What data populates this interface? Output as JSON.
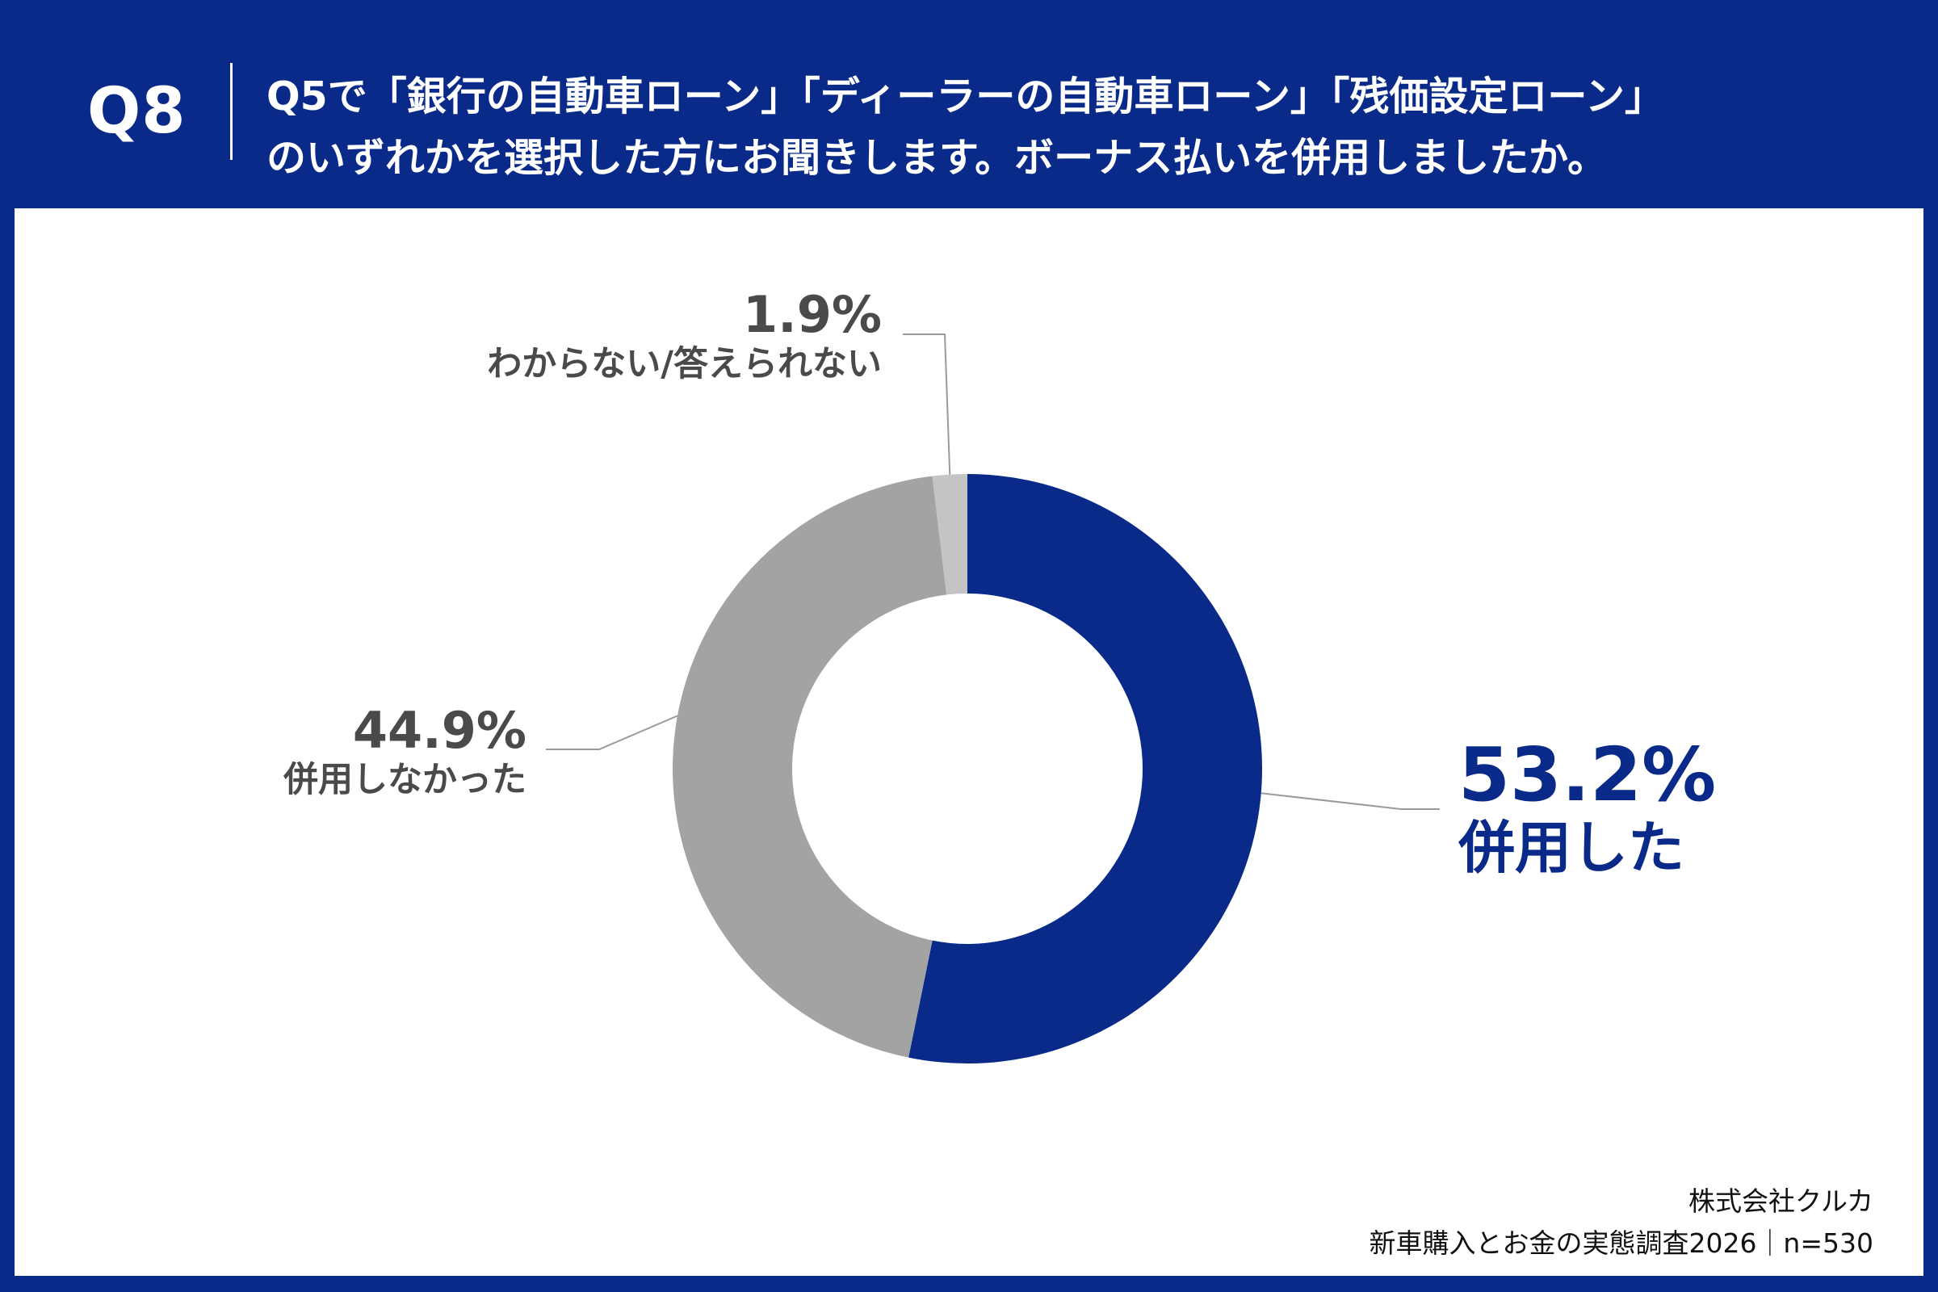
{
  "header": {
    "question_number": "Q8",
    "question_line1": "Q5で「銀行の自動車ローン」「ディーラーの自動車ローン」「残価設定ローン」",
    "question_line2": "のいずれかを選択した方にお聞きします。ボーナス払いを併用しましたか。"
  },
  "colors": {
    "primary": "#0a2a8a",
    "secondary": "#a3a3a3",
    "tertiary": "#c4c4c4",
    "label_gray": "#4a4a4a",
    "leader_line": "#9a9a9a"
  },
  "chart_data": {
    "type": "pie",
    "variant": "donut",
    "start_angle_deg": 0,
    "direction": "clockwise",
    "series": [
      {
        "name": "併用した",
        "value": 53.2,
        "label": "53.2%",
        "color": "#0a2a8a"
      },
      {
        "name": "併用しなかった",
        "value": 44.9,
        "label": "44.9%",
        "color": "#a3a3a3"
      },
      {
        "name": "わからない/答えられない",
        "value": 1.9,
        "label": "1.9%",
        "color": "#c4c4c4"
      }
    ],
    "unit": "%"
  },
  "footer": {
    "company": "株式会社クルカ",
    "survey": "新車購入とお金の実態調査2026｜n=530"
  }
}
